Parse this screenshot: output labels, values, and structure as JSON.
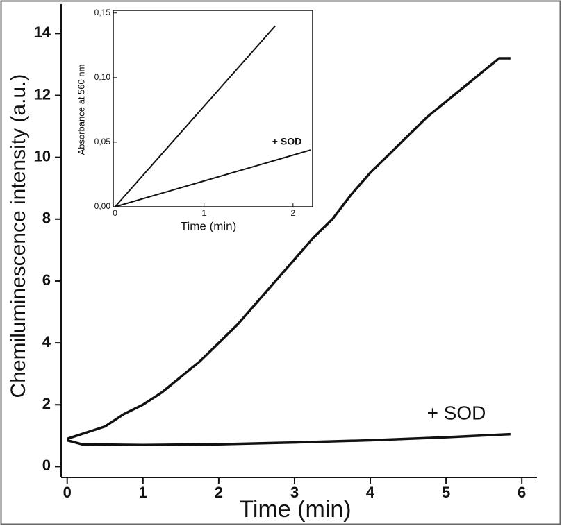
{
  "chart_data": [
    {
      "type": "line",
      "xlabel": "Time (min)",
      "ylabel": "Chemiluminescence  intensity (a.u.)",
      "xlim": [
        -0.08,
        6.2
      ],
      "ylim": [
        -0.35,
        14.95
      ],
      "xticks": [
        0,
        1,
        2,
        3,
        4,
        5,
        6
      ],
      "yticks": [
        0,
        2,
        4,
        6,
        8,
        10,
        12,
        14
      ],
      "annotations": [
        "+ SOD"
      ],
      "series": [
        {
          "color": "#111111",
          "x": [
            0,
            0.25,
            0.5,
            0.75,
            1,
            1.25,
            1.5,
            1.75,
            2,
            2.25,
            2.5,
            2.75,
            3,
            3.25,
            3.5,
            3.75,
            4,
            4.25,
            4.5,
            4.75,
            5,
            5.25,
            5.5,
            5.7,
            5.85
          ],
          "values": [
            0.9,
            1.1,
            1.3,
            1.7,
            2.0,
            2.4,
            2.9,
            3.4,
            4.0,
            4.6,
            5.3,
            6.0,
            6.7,
            7.4,
            8.0,
            8.8,
            9.5,
            10.1,
            10.7,
            11.3,
            11.8,
            12.3,
            12.8,
            13.2,
            13.2
          ]
        },
        {
          "color": "#111111",
          "x": [
            0,
            0.2,
            1,
            2,
            3,
            4,
            5,
            5.85
          ],
          "values": [
            0.85,
            0.72,
            0.7,
            0.72,
            0.78,
            0.85,
            0.95,
            1.05
          ]
        }
      ]
    },
    {
      "type": "line",
      "xlabel": "Time (min)",
      "ylabel": "Absorbance at 560 nm",
      "xlim": [
        -0.02,
        2.22
      ],
      "ylim": [
        0,
        0.152
      ],
      "xticks": [
        0,
        1,
        2
      ],
      "yticks": [
        {
          "value": 0,
          "label": "0,00"
        },
        {
          "value": 0.05,
          "label": "0,05"
        },
        {
          "value": 0.1,
          "label": "0,10"
        },
        {
          "value": 0.15,
          "label": "0,15"
        }
      ],
      "annotations": [
        "+ SOD"
      ],
      "series": [
        {
          "color": "#111111",
          "x": [
            0,
            1.8
          ],
          "values": [
            0,
            0.14
          ]
        },
        {
          "color": "#111111",
          "x": [
            0,
            2.2
          ],
          "values": [
            0,
            0.044
          ]
        }
      ]
    }
  ]
}
